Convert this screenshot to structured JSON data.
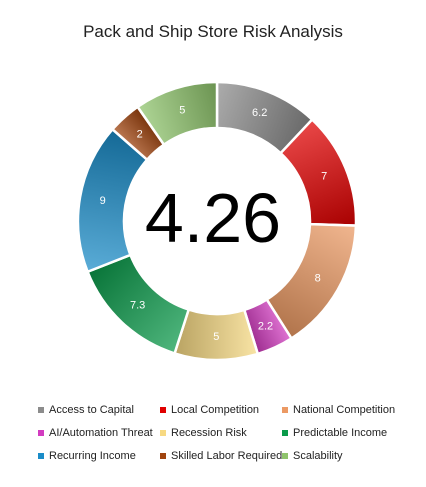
{
  "chart_data": {
    "type": "pie",
    "variant": "donut",
    "title": "Pack and Ship Store Risk Analysis",
    "center_label": "4.26",
    "categories": [
      "Access to Capital",
      "Local Competition",
      "National Competition",
      "AI/Automation Threat",
      "Recession Risk",
      "Predictable Income",
      "Recurring Income",
      "Skilled Labor Required",
      "Scalability"
    ],
    "values": [
      6.2,
      7,
      8,
      2.2,
      5,
      7.3,
      9,
      2,
      5
    ],
    "data_labels": [
      "6.2",
      "7",
      "8",
      "2.2",
      "5",
      "7.3",
      "9",
      "2",
      "5"
    ],
    "colors": [
      "#8c8c8c",
      "#e00000",
      "#ec9a64",
      "#d23cc0",
      "#f7d982",
      "#0a9a4a",
      "#1a8cc8",
      "#a0440e",
      "#8fc46c"
    ],
    "legend_position": "bottom"
  }
}
